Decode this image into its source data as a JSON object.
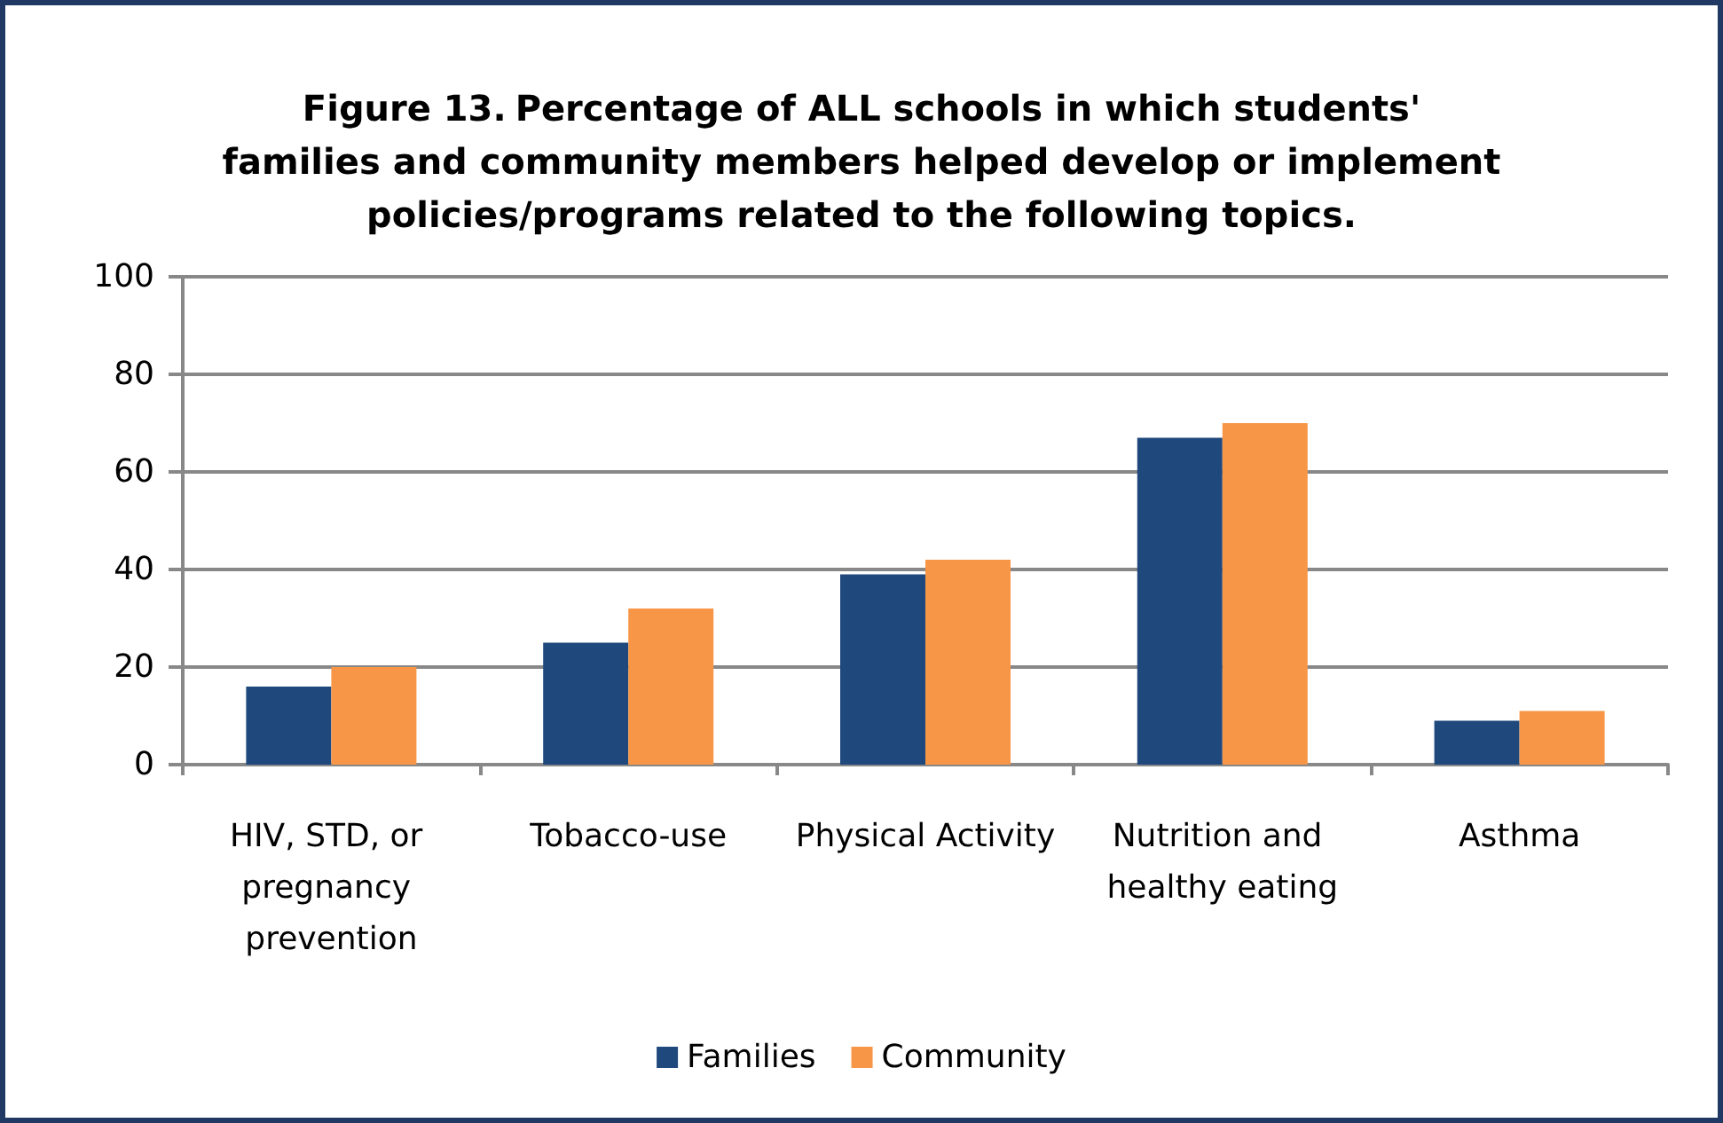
{
  "chart_data": {
    "type": "bar",
    "title": "Figure 13. Percentage of ALL schools in which students' families and community members helped develop or implement policies/programs related to the following topics.",
    "categories": [
      "HIV, STD, or pregnancy prevention",
      "Tobacco-use",
      "Physical Activity",
      "Nutrition and healthy eating",
      "Asthma"
    ],
    "series": [
      {
        "name": "Families",
        "color": "#1f497d",
        "values": [
          16,
          25,
          39,
          67,
          9
        ]
      },
      {
        "name": "Community",
        "color": "#f79646",
        "values": [
          20,
          32,
          42,
          70,
          11
        ]
      }
    ],
    "ylim": [
      0,
      100
    ],
    "yticks": [
      0,
      20,
      40,
      60,
      80,
      100
    ],
    "grid": "y",
    "legend": "bottom"
  }
}
